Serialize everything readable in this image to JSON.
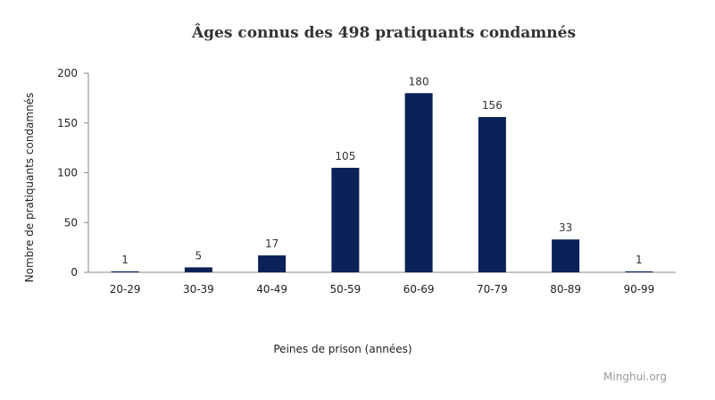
{
  "chart_data": {
    "type": "bar",
    "title": "Âges connus des 498 pratiquants condamnés",
    "xlabel": "Peines de prison (années)",
    "ylabel": "Nombre de pratiquants condamnés",
    "categories": [
      "20-29",
      "30-39",
      "40-49",
      "50-59",
      "60-69",
      "70-79",
      "80-89",
      "90-99"
    ],
    "values": [
      1,
      5,
      17,
      105,
      180,
      156,
      33,
      1
    ],
    "ylim": [
      0,
      200
    ],
    "yticks": [
      0,
      50,
      100,
      150,
      200
    ],
    "grid": false,
    "bar_color": "#0c2157",
    "data_labels": true
  },
  "watermark": "Minghui.org"
}
